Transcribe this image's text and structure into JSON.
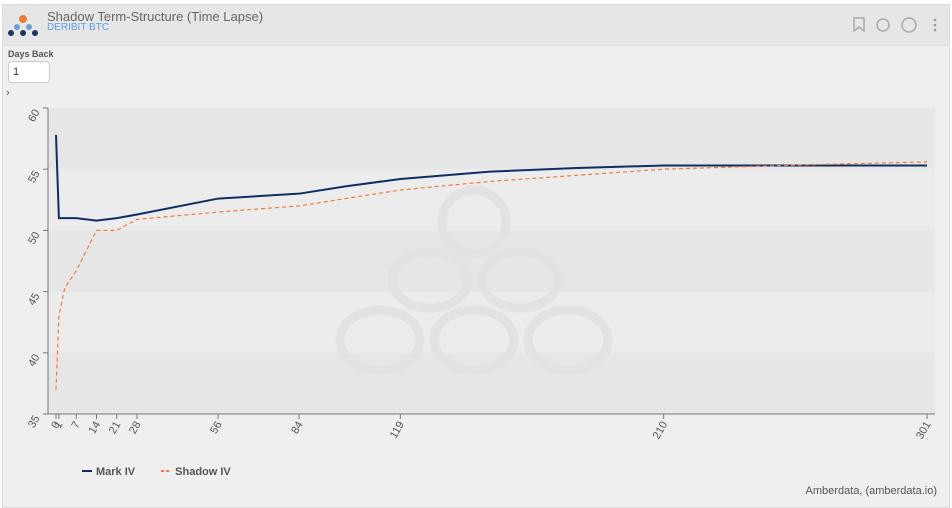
{
  "controls": {
    "label": "Days Back",
    "value": "1"
  },
  "chart_data": {
    "type": "line",
    "title": "Shadow Term-Structure (Time Lapse)",
    "subtitle": "DERIBIT BTC",
    "credit": "Amberdata, (amberdata.io)",
    "x": [
      0,
      1,
      3,
      7,
      14,
      21,
      28,
      56,
      84,
      100,
      119,
      150,
      180,
      210,
      250,
      301
    ],
    "series": [
      {
        "name": "Mark IV",
        "color": "#0d2f63",
        "dashed": false,
        "values": [
          57.8,
          51.0,
          51.0,
          51.0,
          50.8,
          51.0,
          51.3,
          52.6,
          53.0,
          53.6,
          54.2,
          54.8,
          55.1,
          55.3,
          55.3,
          55.3
        ]
      },
      {
        "name": "Shadow IV",
        "color": "#f07a3a",
        "dashed": true,
        "values": [
          37.0,
          43.0,
          45.3,
          46.7,
          50.0,
          50.0,
          50.9,
          51.5,
          52.0,
          52.6,
          53.3,
          54.0,
          54.5,
          55.0,
          55.3,
          55.6
        ]
      }
    ],
    "xlim": [
      0,
      301
    ],
    "xticks": [
      0,
      1,
      7,
      14,
      21,
      28,
      56,
      84,
      119,
      210,
      301
    ],
    "ylim": [
      35,
      60
    ],
    "yticks": [
      35,
      40,
      45,
      50,
      55,
      60
    ],
    "bands": true,
    "legend": "bottom-left"
  }
}
